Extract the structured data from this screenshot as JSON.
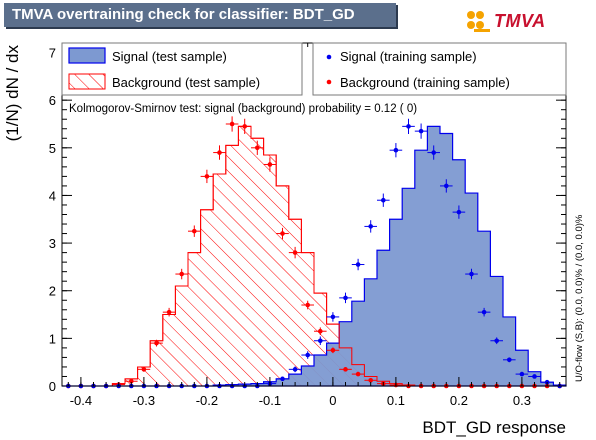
{
  "title": "TMVA overtraining check for classifier: BDT_GD",
  "logo_text": "TMVA",
  "colors": {
    "title_bg": "#5b6f8c",
    "signal_fill": "#7d99d1",
    "signal_line": "#0000ee",
    "background_line": "#ff0000",
    "signal_points": "#0000ee",
    "background_points": "#ff0000"
  },
  "chart_data": {
    "type": "histogram",
    "title": "TMVA overtraining check for classifier: BDT_GD",
    "xlabel": "BDT_GD response",
    "ylabel": "(1/N) dN / dx",
    "xlim": [
      -0.43,
      0.37
    ],
    "ylim": [
      0,
      7.2
    ],
    "xticks": [
      -0.4,
      -0.3,
      -0.2,
      -0.1,
      0,
      0.1,
      0.2,
      0.3
    ],
    "xtick_labels": [
      "-0.4",
      "-0.3",
      "-0.2",
      "-0.1",
      "0",
      "0.1",
      "0.2",
      "0.3"
    ],
    "yticks": [
      0,
      1,
      2,
      3,
      4,
      5,
      6,
      7
    ],
    "ytick_labels": [
      "0",
      "1",
      "2",
      "3",
      "4",
      "5",
      "6",
      "7"
    ],
    "bin_edges": [
      -0.43,
      -0.41,
      -0.39,
      -0.37,
      -0.35,
      -0.33,
      -0.31,
      -0.29,
      -0.27,
      -0.25,
      -0.23,
      -0.21,
      -0.19,
      -0.17,
      -0.15,
      -0.13,
      -0.11,
      -0.09,
      -0.07,
      -0.05,
      -0.03,
      -0.01,
      0.01,
      0.03,
      0.05,
      0.07,
      0.09,
      0.11,
      0.13,
      0.15,
      0.17,
      0.19,
      0.21,
      0.23,
      0.25,
      0.27,
      0.29,
      0.31,
      0.33,
      0.35,
      0.37
    ],
    "series": [
      {
        "name": "Signal (test sample)",
        "style": "filled-histogram",
        "values": [
          0,
          0,
          0,
          0,
          0,
          0,
          0,
          0,
          0,
          0,
          0,
          0,
          0.02,
          0.03,
          0.04,
          0.05,
          0.09,
          0.15,
          0.25,
          0.42,
          0.65,
          0.9,
          1.35,
          1.78,
          2.25,
          2.85,
          3.5,
          4.15,
          4.95,
          5.45,
          5.3,
          4.75,
          4.05,
          3.25,
          2.3,
          1.45,
          0.75,
          0.3,
          0.08,
          0.02
        ]
      },
      {
        "name": "Background (test sample)",
        "style": "hatched-histogram",
        "values": [
          0,
          0,
          0,
          0,
          0.05,
          0.15,
          0.4,
          0.95,
          1.5,
          2.1,
          2.8,
          3.7,
          4.45,
          5.05,
          5.45,
          5.2,
          4.85,
          4.2,
          3.5,
          2.8,
          1.95,
          1.3,
          0.8,
          0.45,
          0.2,
          0.1,
          0.05,
          0.02,
          0,
          0,
          0,
          0,
          0,
          0,
          0,
          0,
          0,
          0,
          0,
          0
        ]
      },
      {
        "name": "Signal (training sample)",
        "style": "points",
        "values": [
          0,
          0,
          0,
          0,
          0,
          0,
          0,
          0,
          0,
          0,
          0,
          0,
          0,
          0,
          0,
          0,
          0.05,
          0.15,
          0.35,
          0.65,
          0.95,
          1.45,
          1.85,
          2.55,
          3.35,
          3.9,
          4.95,
          5.45,
          5.35,
          4.9,
          4.2,
          3.65,
          2.35,
          1.55,
          0.95,
          0.55,
          0.25,
          0.2,
          0.08,
          0
        ],
        "errors": [
          0,
          0,
          0,
          0,
          0,
          0,
          0,
          0,
          0,
          0,
          0,
          0,
          0,
          0,
          0,
          0,
          0.03,
          0.04,
          0.06,
          0.08,
          0.09,
          0.1,
          0.11,
          0.12,
          0.13,
          0.14,
          0.15,
          0.16,
          0.16,
          0.15,
          0.14,
          0.14,
          0.11,
          0.09,
          0.07,
          0.05,
          0.04,
          0.03,
          0.02,
          0
        ]
      },
      {
        "name": "Background (training sample)",
        "style": "points",
        "values": [
          0,
          0,
          0,
          0,
          0.03,
          0.1,
          0.35,
          0.9,
          1.55,
          2.35,
          3.25,
          4.4,
          4.9,
          5.5,
          5.45,
          5.0,
          4.65,
          3.2,
          2.8,
          1.7,
          1.15,
          0.75,
          0.35,
          0.25,
          0.12,
          0.05,
          0.02,
          0,
          0,
          0,
          0,
          0,
          0,
          0,
          0,
          0,
          0,
          0,
          0,
          0
        ],
        "errors": [
          0,
          0,
          0,
          0,
          0.02,
          0.03,
          0.05,
          0.07,
          0.09,
          0.11,
          0.12,
          0.14,
          0.15,
          0.16,
          0.16,
          0.15,
          0.15,
          0.12,
          0.12,
          0.09,
          0.08,
          0.06,
          0.04,
          0.04,
          0.03,
          0.02,
          0.01,
          0,
          0,
          0,
          0,
          0,
          0,
          0,
          0,
          0,
          0,
          0,
          0,
          0
        ]
      }
    ],
    "legend": {
      "placement": "top",
      "entries": [
        "Signal (test sample)",
        "Signal (training sample)",
        "Background (test sample)",
        "Background (training sample)"
      ]
    },
    "ks_text": "Kolmogorov-Smirnov test: signal (background) probability =  0.12 (    0)",
    "overflow_text": "U/O-flow (S,B): (0.0, 0.0)% / (0.0, 0.0)%",
    "grid": false
  }
}
